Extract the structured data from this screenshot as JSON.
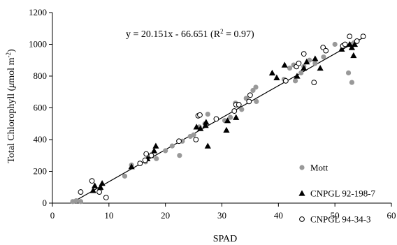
{
  "chart_data": {
    "type": "scatter",
    "xlabel": "SPAD",
    "ylabel_main": "Total Chlorophyll (",
    "ylabel_unit_mu": "μ",
    "ylabel_unit_rest": "mol m",
    "ylabel_sup": "-2",
    "ylabel_close": ")",
    "xlim": [
      0,
      60
    ],
    "ylim": [
      0,
      1200
    ],
    "xticks": [
      0,
      10,
      20,
      30,
      40,
      50,
      60
    ],
    "yticks": [
      0,
      200,
      400,
      600,
      800,
      1000,
      1200
    ],
    "grid": false,
    "legend_position": "right",
    "equation": {
      "main": "y = 20.151x - 66.651 (R",
      "sup": "2",
      "tail": " = 0.97)"
    },
    "trendline": {
      "slope": 20.151,
      "intercept": -66.651,
      "x_range": [
        3.5,
        55
      ]
    },
    "series": [
      {
        "name": "Mott",
        "marker": "circle-filled",
        "color": "#999999",
        "points": [
          [
            3.6,
            10
          ],
          [
            4.2,
            15
          ],
          [
            5,
            10
          ],
          [
            8.5,
            90
          ],
          [
            12.8,
            170
          ],
          [
            14,
            240
          ],
          [
            16.5,
            260
          ],
          [
            18.4,
            280
          ],
          [
            20,
            330
          ],
          [
            21.2,
            360
          ],
          [
            22.5,
            300
          ],
          [
            23,
            390
          ],
          [
            24.4,
            420
          ],
          [
            25,
            430
          ],
          [
            26,
            480
          ],
          [
            27,
            500
          ],
          [
            27.5,
            560
          ],
          [
            30.5,
            520
          ],
          [
            31.5,
            540
          ],
          [
            32.4,
            630
          ],
          [
            33.5,
            590
          ],
          [
            34.3,
            660
          ],
          [
            35.5,
            710
          ],
          [
            36,
            730
          ],
          [
            36.1,
            640
          ],
          [
            41,
            780
          ],
          [
            42,
            850
          ],
          [
            42.7,
            870
          ],
          [
            43,
            770
          ],
          [
            44,
            820
          ],
          [
            44.5,
            860
          ],
          [
            45.5,
            900
          ],
          [
            46.5,
            880
          ],
          [
            48,
            920
          ],
          [
            50,
            1000
          ],
          [
            51.5,
            990
          ],
          [
            52.4,
            820
          ],
          [
            52.8,
            1000
          ],
          [
            53,
            760
          ],
          [
            53.4,
            1010
          ]
        ]
      },
      {
        "name": "CNPGL 92-198-7",
        "marker": "triangle-filled",
        "color": "#000000",
        "points": [
          [
            7.2,
            80
          ],
          [
            7.5,
            110
          ],
          [
            8.5,
            100
          ],
          [
            8.8,
            125
          ],
          [
            14,
            230
          ],
          [
            16.8,
            280
          ],
          [
            17.4,
            300
          ],
          [
            18,
            330
          ],
          [
            18.3,
            360
          ],
          [
            25.5,
            480
          ],
          [
            26.2,
            470
          ],
          [
            27.1,
            490
          ],
          [
            27.2,
            510
          ],
          [
            27.5,
            360
          ],
          [
            30.8,
            460
          ],
          [
            31,
            520
          ],
          [
            32.5,
            540
          ],
          [
            38.9,
            820
          ],
          [
            39.7,
            790
          ],
          [
            41.1,
            870
          ],
          [
            43.3,
            800
          ],
          [
            44.5,
            850
          ],
          [
            45,
            890
          ],
          [
            46.5,
            910
          ],
          [
            47.4,
            850
          ],
          [
            51.2,
            970
          ],
          [
            52.6,
            1000
          ],
          [
            53,
            980
          ],
          [
            53.3,
            930
          ],
          [
            53.5,
            1000
          ]
        ]
      },
      {
        "name": "CNPGL 94-34-3",
        "marker": "circle-open",
        "color": "#000000",
        "points": [
          [
            5,
            70
          ],
          [
            7,
            140
          ],
          [
            8.3,
            70
          ],
          [
            9.5,
            35
          ],
          [
            15.5,
            250
          ],
          [
            16.4,
            270
          ],
          [
            16.6,
            310
          ],
          [
            17.5,
            300
          ],
          [
            22.4,
            390
          ],
          [
            25.4,
            400
          ],
          [
            25.8,
            550
          ],
          [
            26.1,
            555
          ],
          [
            29,
            530
          ],
          [
            32.2,
            580
          ],
          [
            32.5,
            620
          ],
          [
            33,
            620
          ],
          [
            34.8,
            640
          ],
          [
            35,
            680
          ],
          [
            41.3,
            770
          ],
          [
            43.2,
            860
          ],
          [
            43.6,
            880
          ],
          [
            44.5,
            940
          ],
          [
            46.3,
            760
          ],
          [
            47.9,
            980
          ],
          [
            48.4,
            960
          ],
          [
            51.4,
            990
          ],
          [
            51.8,
            1000
          ],
          [
            52.6,
            1050
          ],
          [
            53.9,
            1020
          ],
          [
            55,
            1050
          ]
        ]
      }
    ]
  }
}
